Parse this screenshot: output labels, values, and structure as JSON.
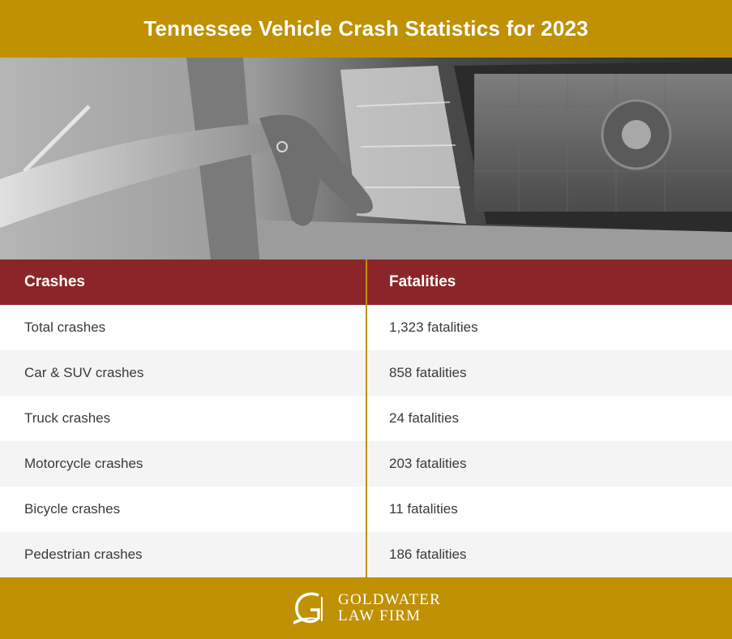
{
  "title": "Tennessee Vehicle Crash Statistics for 2023",
  "table": {
    "headers": {
      "crashes": "Crashes",
      "fatalities": "Fatalities"
    },
    "rows": [
      {
        "crashes": "Total crashes",
        "fatalities": "1,323 fatalities"
      },
      {
        "crashes": "Car & SUV crashes",
        "fatalities": "858 fatalities"
      },
      {
        "crashes": "Truck crashes",
        "fatalities": "24 fatalities"
      },
      {
        "crashes": "Motorcycle crashes",
        "fatalities": "203 fatalities"
      },
      {
        "crashes": "Bicycle crashes",
        "fatalities": "11 fatalities"
      },
      {
        "crashes": "Pedestrian crashes",
        "fatalities": "186 fatalities"
      }
    ]
  },
  "footer": {
    "logo_line1": "GOLDWATER",
    "logo_line2": "LAW FIRM"
  },
  "colors": {
    "gold": "#bf9103",
    "maroon": "#8c2529",
    "row_alt": "#f4f4f4"
  },
  "icons": {
    "logo": "goldwater-g-mark-icon",
    "photo": "damaged-headlight-photo"
  }
}
